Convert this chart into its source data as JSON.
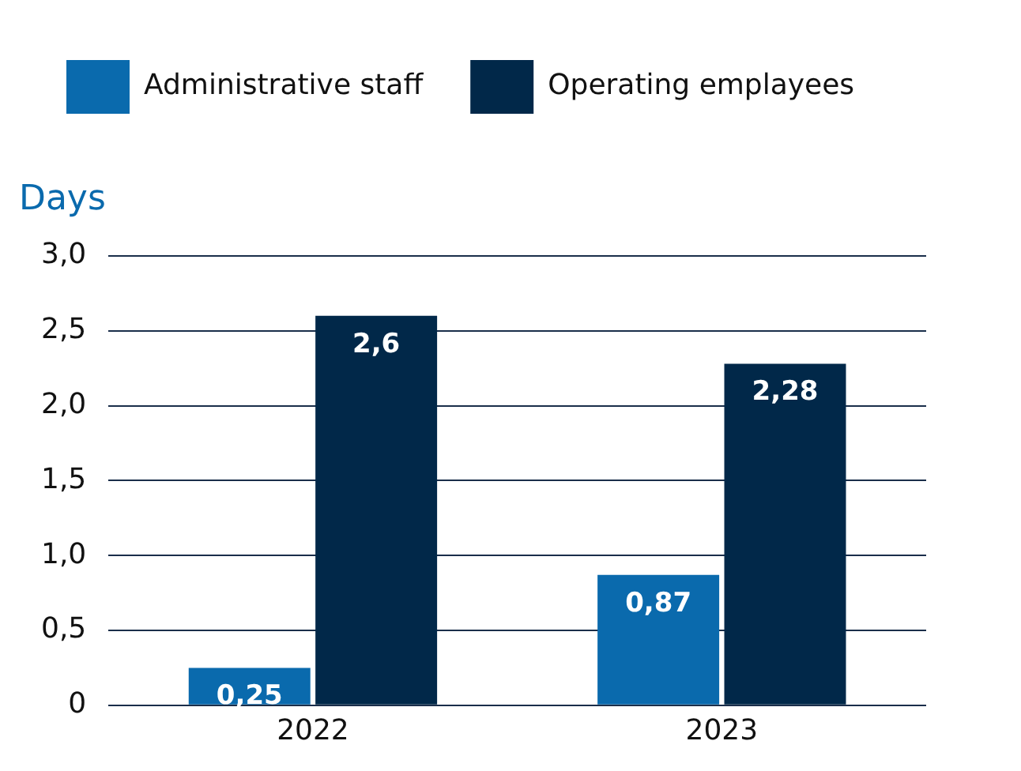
{
  "chart_data": {
    "type": "bar",
    "ylabel": "Days",
    "categories": [
      "2022",
      "2023"
    ],
    "series": [
      {
        "name": "Administrative staff",
        "color": "#0a6aad",
        "values": [
          0.25,
          0.87
        ],
        "value_labels": [
          "0,25",
          "0,87"
        ]
      },
      {
        "name": "Operating emplayees",
        "color": "#012849",
        "values": [
          2.6,
          2.28
        ],
        "value_labels": [
          "2,6",
          "2,28"
        ]
      }
    ],
    "ylim": [
      0,
      3
    ],
    "yticks": [
      0,
      {
        "value": 0.5,
        "label": "0,5"
      },
      {
        "value": 1,
        "label": "1,0"
      },
      {
        "value": 1.5,
        "label": "1,5"
      },
      {
        "value": 2,
        "label": "2,0"
      },
      {
        "value": 2.5,
        "label": "2,5"
      },
      {
        "value": 3,
        "label": "3,0"
      }
    ],
    "grid": "y",
    "legend": "top"
  }
}
